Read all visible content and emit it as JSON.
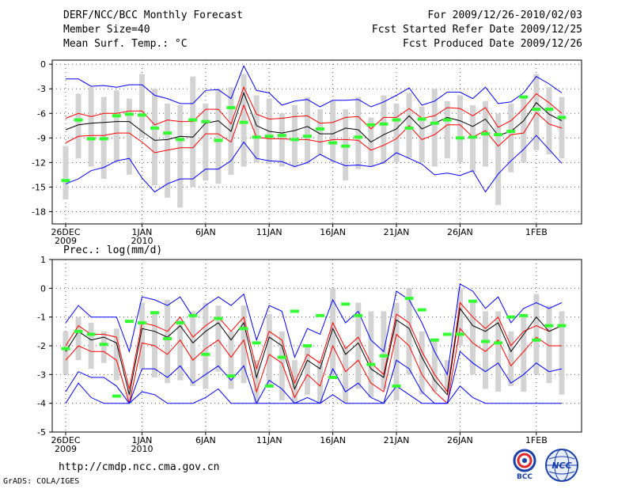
{
  "header": {
    "title": "DERF/NCC/BCC Monthly Forecast",
    "member_size": "Member Size=40",
    "variable": "Mean Surf. Temp.: °C",
    "period": "For 2009/12/26-2010/02/03",
    "start_date": "Fcst Started Refer Date 2009/12/25",
    "produced_date": "Fcst Produced Date 2009/12/26"
  },
  "footer": {
    "url": "http://cmdp.ncc.cma.gov.cn",
    "credit": "GrADS: COLA/IGES",
    "logo_bcc": "BCC",
    "logo_ncc": "NCC"
  },
  "x_ticks": [
    {
      "day": 0,
      "label": "26DEC",
      "sub": "2009"
    },
    {
      "day": 6,
      "label": "1JAN",
      "sub": "2010"
    },
    {
      "day": 11,
      "label": "6JAN",
      "sub": ""
    },
    {
      "day": 16,
      "label": "11JAN",
      "sub": ""
    },
    {
      "day": 21,
      "label": "16JAN",
      "sub": ""
    },
    {
      "day": 26,
      "label": "21JAN",
      "sub": ""
    },
    {
      "day": 31,
      "label": "26JAN",
      "sub": ""
    },
    {
      "day": 37,
      "label": "1FEB",
      "sub": ""
    }
  ],
  "colors": {
    "mean": "#000000",
    "spread": "#ff0000",
    "extreme": "#0000ff",
    "range_bar": "#d3d3d3",
    "obs": "#33ff33",
    "grid": "#555555"
  },
  "chart_data": [
    {
      "type": "line",
      "title": "Mean Surf. Temp.: °C",
      "xlabel": "",
      "ylabel": "°C",
      "ylim": [
        -19.5,
        0.5
      ],
      "yticks": [
        0,
        -3,
        -6,
        -9,
        -12,
        -15,
        -18
      ],
      "days": 40,
      "series": [
        {
          "name": "max",
          "values": [
            -1.8,
            -1.8,
            -2.7,
            -2.6,
            -2.8,
            -2.5,
            -2.5,
            -3.8,
            -4.2,
            -4.8,
            -4.8,
            -3.2,
            -3.1,
            -4.2,
            -0.2,
            -3.2,
            -3.5,
            -5.0,
            -4.5,
            -4.3,
            -5.2,
            -4.4,
            -4.4,
            -4.3,
            -5.2,
            -4.6,
            -3.8,
            -2.9,
            -5.0,
            -4.5,
            -3.4,
            -3.4,
            -4.2,
            -2.8,
            -4.8,
            -4.6,
            -3.5,
            -1.5,
            -2.4,
            -3.5
          ]
        },
        {
          "name": "upper",
          "values": [
            -6.6,
            -6.0,
            -6.4,
            -6.0,
            -6.0,
            -5.7,
            -5.7,
            -7.4,
            -6.8,
            -7.0,
            -7.0,
            -5.5,
            -5.5,
            -7.3,
            -2.8,
            -6.1,
            -6.7,
            -6.6,
            -6.4,
            -6.3,
            -7.2,
            -7.1,
            -6.5,
            -6.4,
            -7.9,
            -6.5,
            -6.5,
            -5.4,
            -6.6,
            -6.3,
            -5.3,
            -5.4,
            -6.3,
            -5.3,
            -7.7,
            -6.9,
            -5.4,
            -3.6,
            -4.7,
            -6.0
          ]
        },
        {
          "name": "mean",
          "values": [
            -8.0,
            -7.4,
            -7.2,
            -7.1,
            -7.0,
            -7.0,
            -8.2,
            -9.3,
            -9.2,
            -8.8,
            -8.9,
            -7.2,
            -6.9,
            -8.2,
            -3.5,
            -7.5,
            -8.2,
            -8.4,
            -8.1,
            -7.6,
            -8.5,
            -8.5,
            -7.8,
            -8.0,
            -9.5,
            -8.6,
            -7.9,
            -6.3,
            -7.9,
            -7.2,
            -6.5,
            -6.9,
            -7.6,
            -6.7,
            -8.7,
            -8.2,
            -6.9,
            -4.7,
            -6.1,
            -6.9
          ]
        },
        {
          "name": "lower",
          "values": [
            -9.6,
            -8.8,
            -8.7,
            -8.7,
            -8.4,
            -8.4,
            -9.5,
            -10.8,
            -10.5,
            -10.2,
            -10.2,
            -8.5,
            -8.5,
            -9.5,
            -5.0,
            -8.9,
            -9.1,
            -9.1,
            -9.2,
            -9.2,
            -9.5,
            -9.2,
            -9.2,
            -9.3,
            -10.5,
            -9.9,
            -9.1,
            -7.5,
            -9.2,
            -8.6,
            -7.4,
            -7.4,
            -8.9,
            -8.1,
            -10.0,
            -8.6,
            -8.4,
            -5.9,
            -7.3,
            -7.8
          ]
        },
        {
          "name": "min",
          "values": [
            -14.6,
            -14.0,
            -13.0,
            -12.6,
            -11.8,
            -11.5,
            -13.9,
            -15.6,
            -14.6,
            -14.0,
            -14.0,
            -12.8,
            -12.8,
            -11.8,
            -9.5,
            -11.5,
            -11.8,
            -11.9,
            -12.5,
            -12.0,
            -11.0,
            -11.8,
            -12.4,
            -12.3,
            -12.5,
            -12.0,
            -10.8,
            -11.5,
            -12.2,
            -13.5,
            -13.3,
            -13.6,
            -13.0,
            -15.6,
            -13.4,
            -11.8,
            -10.4,
            -8.7,
            -10.4,
            -12.1
          ]
        }
      ],
      "range_bars": [
        [
          -10.0,
          -16.5
        ],
        [
          -3.6,
          -11.5
        ],
        [
          -2.8,
          -12.5
        ],
        [
          -4.0,
          -14.0
        ],
        [
          -3.2,
          -12.0
        ],
        [
          -4.2,
          -13.5
        ],
        [
          -1.2,
          -9.0
        ],
        [
          -3.0,
          -14.8
        ],
        [
          -4.8,
          -16.3
        ],
        [
          -5.0,
          -17.5
        ],
        [
          -1.5,
          -15.0
        ],
        [
          -4.8,
          -14.2
        ],
        [
          -3.0,
          -14.6
        ],
        [
          -2.8,
          -13.5
        ],
        [
          -1.2,
          -12.5
        ],
        [
          -3.8,
          -12.0
        ],
        [
          -4.2,
          -12.2
        ],
        [
          -6.0,
          -12.5
        ],
        [
          -5.0,
          -12.6
        ],
        [
          -4.0,
          -12.2
        ],
        [
          -5.5,
          -11.0
        ],
        [
          -4.5,
          -12.0
        ],
        [
          -5.5,
          -14.2
        ],
        [
          -4.0,
          -12.8
        ],
        [
          -6.5,
          -12.5
        ],
        [
          -3.8,
          -12.2
        ],
        [
          -4.8,
          -12.0
        ],
        [
          -3.5,
          -11.5
        ],
        [
          -5.2,
          -12.0
        ],
        [
          -3.0,
          -12.5
        ],
        [
          -4.5,
          -11.5
        ],
        [
          -3.8,
          -12.0
        ],
        [
          -5.0,
          -13.2
        ],
        [
          -4.5,
          -12.5
        ],
        [
          -6.0,
          -17.2
        ],
        [
          -4.8,
          -13.2
        ],
        [
          -3.8,
          -12.0
        ],
        [
          -1.2,
          -10.5
        ],
        [
          -2.8,
          -11.0
        ],
        [
          -4.0,
          -11.5
        ]
      ],
      "observed": [
        -14.2,
        -6.8,
        -9.1,
        -9.1,
        -6.3,
        -6.1,
        -6.2,
        -7.8,
        -8.4,
        -9.2,
        -6.8,
        -7.0,
        -9.3,
        -5.3,
        -7.1,
        -8.9,
        -8.8,
        -8.7,
        -9.2,
        -8.8,
        -7.9,
        -9.6,
        -10.0,
        -8.9,
        -7.4,
        -7.3,
        -6.8,
        -7.8,
        -6.7,
        -7.2,
        -6.8,
        -9.0,
        -8.9,
        -8.5,
        -8.6,
        -8.2,
        -4.0,
        -5.5,
        -5.5,
        -6.5
      ]
    },
    {
      "type": "line",
      "title": "Prec.: log(mm/d)",
      "xlabel": "",
      "ylabel": "log(mm/d)",
      "ylim": [
        -5,
        1
      ],
      "yticks": [
        1,
        0,
        -1,
        -2,
        -3,
        -4,
        -5
      ],
      "days": 40,
      "series": [
        {
          "name": "max",
          "values": [
            -1.2,
            -0.6,
            -1.0,
            -1.0,
            -1.0,
            -2.2,
            -0.3,
            -0.4,
            -0.6,
            -0.3,
            -1.0,
            -0.6,
            -0.3,
            -0.6,
            -0.2,
            -1.8,
            -0.6,
            -0.8,
            -2.4,
            -1.4,
            -1.6,
            -0.4,
            -1.2,
            -0.8,
            -1.8,
            -2.2,
            -0.1,
            -0.4,
            -1.2,
            -2.2,
            -3.0,
            0.15,
            -0.1,
            -0.7,
            -0.3,
            -1.2,
            -0.7,
            -0.5,
            -0.7,
            -0.5
          ]
        },
        {
          "name": "upper",
          "values": [
            -2.0,
            -1.3,
            -1.6,
            -1.6,
            -1.7,
            -3.5,
            -1.2,
            -1.3,
            -1.5,
            -1.0,
            -1.7,
            -1.3,
            -1.0,
            -1.5,
            -1.0,
            -2.8,
            -1.5,
            -1.8,
            -3.3,
            -2.3,
            -2.6,
            -1.2,
            -2.1,
            -1.7,
            -2.6,
            -3.0,
            -0.9,
            -1.2,
            -2.2,
            -3.0,
            -3.6,
            -0.5,
            -1.0,
            -1.4,
            -1.0,
            -2.0,
            -1.5,
            -1.3,
            -1.5,
            -1.3
          ]
        },
        {
          "name": "mean",
          "values": [
            -2.2,
            -1.5,
            -1.8,
            -1.7,
            -1.9,
            -3.7,
            -1.4,
            -1.5,
            -1.7,
            -1.3,
            -1.9,
            -1.5,
            -1.2,
            -1.8,
            -1.2,
            -3.1,
            -1.7,
            -2.0,
            -3.5,
            -2.5,
            -2.8,
            -1.4,
            -2.3,
            -1.9,
            -2.8,
            -3.1,
            -1.1,
            -1.4,
            -2.4,
            -3.2,
            -3.7,
            -0.7,
            -1.3,
            -1.5,
            -1.2,
            -2.2,
            -1.6,
            -1.0,
            -1.5,
            -1.3
          ]
        },
        {
          "name": "lower",
          "values": [
            -2.5,
            -2.0,
            -2.2,
            -2.2,
            -2.5,
            -4.0,
            -1.9,
            -2.0,
            -2.3,
            -1.8,
            -2.5,
            -2.1,
            -1.8,
            -2.4,
            -1.8,
            -3.6,
            -2.3,
            -2.6,
            -3.8,
            -3.0,
            -3.4,
            -2.0,
            -2.9,
            -2.5,
            -3.3,
            -3.6,
            -1.6,
            -2.0,
            -3.0,
            -3.6,
            -4.0,
            -1.4,
            -1.9,
            -2.2,
            -1.8,
            -2.7,
            -2.2,
            -1.7,
            -2.0,
            -2.0
          ]
        },
        {
          "name": "min",
          "values": [
            -3.6,
            -2.9,
            -3.1,
            -3.1,
            -3.4,
            -4.0,
            -2.8,
            -2.8,
            -3.1,
            -2.7,
            -3.3,
            -3.0,
            -2.7,
            -3.2,
            -2.7,
            -4.0,
            -3.2,
            -3.5,
            -4.0,
            -3.8,
            -4.0,
            -2.8,
            -3.6,
            -3.3,
            -3.8,
            -4.0,
            -2.5,
            -2.8,
            -3.6,
            -4.0,
            -4.0,
            -2.2,
            -2.6,
            -2.9,
            -2.6,
            -3.3,
            -3.0,
            -2.6,
            -2.9,
            -2.8
          ]
        },
        {
          "name": "floor",
          "values": [
            -4.0,
            -3.3,
            -3.8,
            -4.0,
            -4.0,
            -4.0,
            -3.6,
            -3.7,
            -4.0,
            -4.0,
            -4.0,
            -3.8,
            -3.5,
            -4.0,
            -4.0,
            -4.0,
            -4.0,
            -4.0,
            -4.0,
            -4.0,
            -4.0,
            -3.7,
            -4.0,
            -4.0,
            -4.0,
            -4.0,
            -3.4,
            -3.7,
            -4.0,
            -4.0,
            -4.0,
            -3.4,
            -3.8,
            -4.0,
            -4.0,
            -4.0,
            -4.0,
            -4.0,
            -4.0,
            -4.0
          ]
        }
      ],
      "range_bars": [
        [
          -1.5,
          -3.0
        ],
        [
          -1.0,
          -2.5
        ],
        [
          -1.2,
          -2.8
        ],
        [
          -1.5,
          -2.6
        ],
        [
          -1.4,
          -3.2
        ],
        [
          -3.5,
          -4.0
        ],
        [
          -0.5,
          -2.8
        ],
        [
          -0.8,
          -3.1
        ],
        [
          -0.4,
          -3.3
        ],
        [
          -1.1,
          -3.2
        ],
        [
          -0.8,
          -3.4
        ],
        [
          -0.5,
          -3.5
        ],
        [
          -0.6,
          -2.9
        ],
        [
          -1.5,
          -3.5
        ],
        [
          -0.6,
          -3.3
        ],
        [
          -2.5,
          -4.0
        ],
        [
          -0.9,
          -3.4
        ],
        [
          -1.5,
          -3.9
        ],
        [
          -2.5,
          -4.0
        ],
        [
          -2.0,
          -3.7
        ],
        [
          -2.5,
          -4.0
        ],
        [
          0.0,
          -3.0
        ],
        [
          -2.0,
          -4.0
        ],
        [
          -0.5,
          -3.5
        ],
        [
          -0.8,
          -3.8
        ],
        [
          -0.8,
          -3.5
        ],
        [
          -0.5,
          -3.9
        ],
        [
          0.0,
          -3.0
        ],
        [
          -1.5,
          -3.7
        ],
        [
          -1.8,
          -3.6
        ],
        [
          -2.5,
          -3.6
        ],
        [
          0.0,
          -2.0
        ],
        [
          -0.5,
          -3.0
        ],
        [
          -0.8,
          -3.5
        ],
        [
          -0.8,
          -3.6
        ],
        [
          -1.5,
          -3.4
        ],
        [
          -1.0,
          -3.6
        ],
        [
          -0.2,
          -3.0
        ],
        [
          -0.6,
          -3.3
        ],
        [
          -0.8,
          -3.7
        ]
      ],
      "observed": [
        -2.1,
        -1.5,
        -1.6,
        -1.95,
        -3.75,
        -1.15,
        -1.2,
        -0.85,
        -1.75,
        -1.2,
        -0.95,
        -2.3,
        -1.05,
        -3.05,
        -1.4,
        -1.9,
        -3.4,
        -2.4,
        -0.8,
        -2.0,
        -0.95,
        -3.1,
        -0.55,
        -0.95,
        -2.65,
        -2.35,
        -3.4,
        -0.35,
        -0.75,
        -1.8,
        -1.6,
        -1.6,
        -0.45,
        -1.85,
        -1.9,
        -1.0,
        -0.95,
        -1.8,
        -1.3,
        -1.3
      ]
    }
  ]
}
